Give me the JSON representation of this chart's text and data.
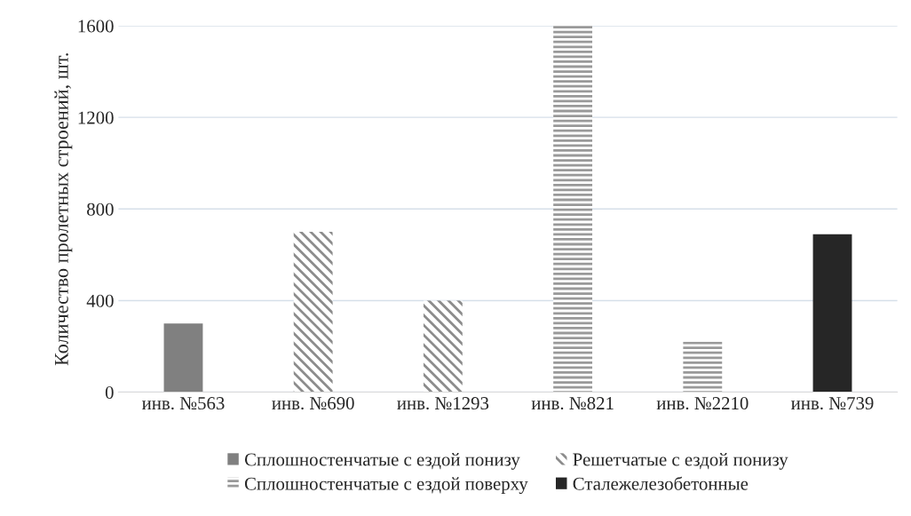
{
  "chart_data": {
    "type": "bar",
    "ylabel": "Количество пролетных строений, шт.",
    "categories": [
      "инв. №563",
      "инв. №690",
      "инв. №1293",
      "инв. №821",
      "инв. №2210",
      "инв. №739"
    ],
    "series": [
      {
        "name": "Сплошностенчатые с ездой понизу",
        "color": "#808080",
        "values": [
          300,
          null,
          null,
          null,
          null,
          null
        ]
      },
      {
        "name": "Решетчатые с ездой понизу",
        "color": "#8c8c8c",
        "values": [
          null,
          700,
          400,
          null,
          null,
          null
        ]
      },
      {
        "name": "Сплошностенчатые с ездой поверху",
        "color": "#999999",
        "values": [
          null,
          null,
          null,
          1600,
          220,
          null
        ]
      },
      {
        "name": "Сталежелезобетонные",
        "color": "#262626",
        "values": [
          null,
          null,
          null,
          null,
          null,
          690
        ]
      }
    ],
    "ylim": [
      0,
      1600
    ],
    "yticks": [
      0,
      400,
      800,
      1200,
      1600
    ],
    "grid": "y",
    "legend": "bottom"
  }
}
